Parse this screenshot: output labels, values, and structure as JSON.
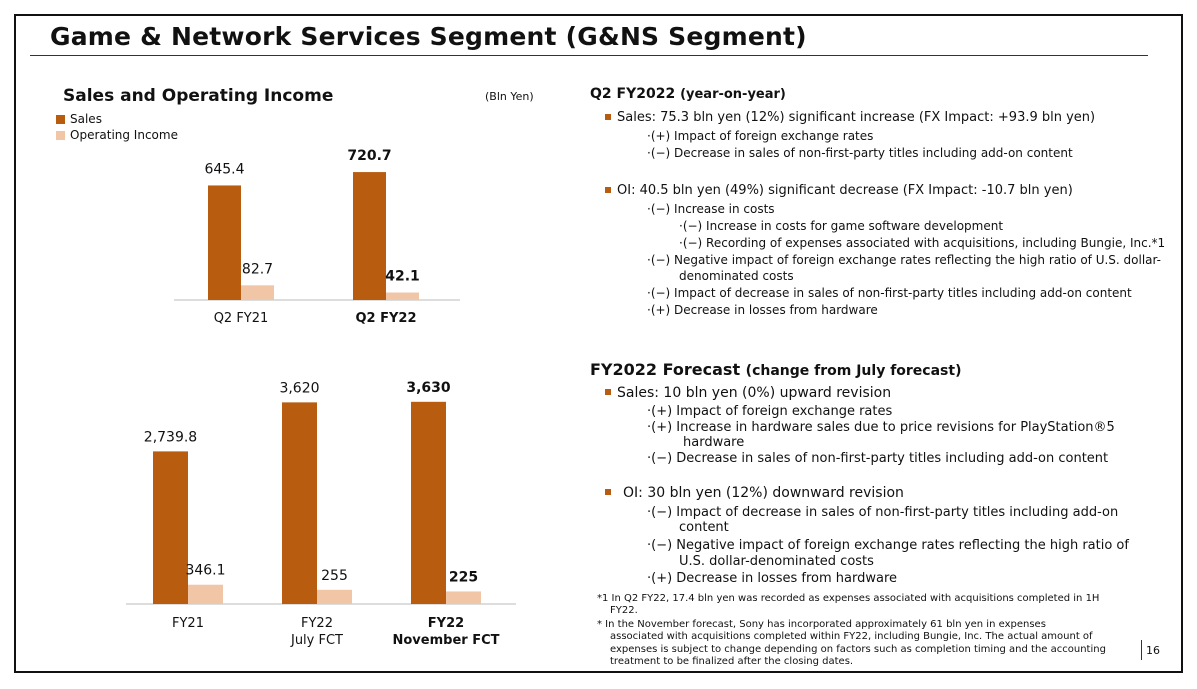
{
  "title": "Game & Network Services Segment (G&NS Segment)",
  "left": {
    "heading": "Sales and Operating Income",
    "unit": "(Bln Yen)",
    "legend": [
      {
        "label": "Sales",
        "color": "#b85c10"
      },
      {
        "label": "Operating Income",
        "color": "#f0c6a7"
      }
    ]
  },
  "chart_data": [
    {
      "type": "bar",
      "categories": [
        "Q2 FY21",
        "Q2 FY22"
      ],
      "series": [
        {
          "name": "Sales",
          "values": [
            645.4,
            720.7
          ],
          "labels": [
            "645.4",
            "720.7"
          ]
        },
        {
          "name": "Operating Income",
          "values": [
            82.7,
            42.1
          ],
          "labels": [
            "82.7",
            "42.1"
          ]
        }
      ],
      "ylabel": "(Bln Yen)"
    },
    {
      "type": "bar",
      "categories": [
        "FY21",
        "FY22\nJuly FCT",
        "FY22\nNovember FCT"
      ],
      "series": [
        {
          "name": "Sales",
          "values": [
            2739.8,
            3620,
            3630
          ],
          "labels": [
            "2,739.8",
            "3,620",
            "3,630"
          ]
        },
        {
          "name": "Operating Income",
          "values": [
            346.1,
            255,
            225
          ],
          "labels": [
            "346.1",
            "255",
            "225"
          ]
        }
      ]
    }
  ],
  "right": {
    "q2": {
      "heading": "Q2 FY2022",
      "heading_sub": "(year-on-year)",
      "sales": "Sales: 75.3 bln yen (12%) significant increase (FX Impact: +93.9 bln yen)",
      "sales_items": [
        "·(+) Impact of foreign exchange rates",
        "·(−) Decrease in sales of non-first-party titles including add-on content"
      ],
      "oi": "OI:  40.5 bln yen (49%) significant decrease (FX Impact: -10.7 bln yen)",
      "oi_items": [
        "·(−) Increase in costs",
        "·(−) Increase in costs for game software development",
        "·(−) Recording of expenses associated with acquisitions, including Bungie, Inc.*1",
        "·(−) Negative impact of foreign exchange rates reflecting the high ratio of U.S. dollar-",
        "denominated costs",
        "·(−) Impact of decrease in sales of non-first-party titles including add-on content",
        "·(+) Decrease in losses from hardware"
      ]
    },
    "fcst": {
      "heading": "FY2022 Forecast",
      "heading_sub": "(change from July forecast)",
      "sales": "Sales: 10 bln yen (0%) upward revision",
      "sales_items": [
        "·(+) Impact of foreign exchange rates",
        "·(+) Increase in hardware sales due to price revisions for PlayStation®5",
        "hardware",
        "·(−) Decrease in sales of non-first-party titles including add-on content"
      ],
      "oi": "OI: 30 bln yen (12%) downward revision",
      "oi_items": [
        "·(−) Impact of decrease in sales of non-first-party titles including add-on",
        "content",
        "·(−) Negative impact of foreign exchange rates reflecting the high ratio of",
        "U.S. dollar-denominated costs",
        "·(+) Decrease in losses from hardware"
      ]
    },
    "footnotes": [
      "*1 In Q2 FY22, 17.4 bln yen was recorded as expenses associated with acquisitions completed in 1H",
      "FY22.",
      "*  In the November forecast, Sony has incorporated approximately 61 bln yen in expenses",
      "associated with acquisitions completed within FY22, including Bungie, Inc. The actual amount of",
      "expenses is subject to change depending on factors such as completion timing and the accounting",
      "treatment to be finalized after the closing dates."
    ]
  },
  "page_number": "16"
}
